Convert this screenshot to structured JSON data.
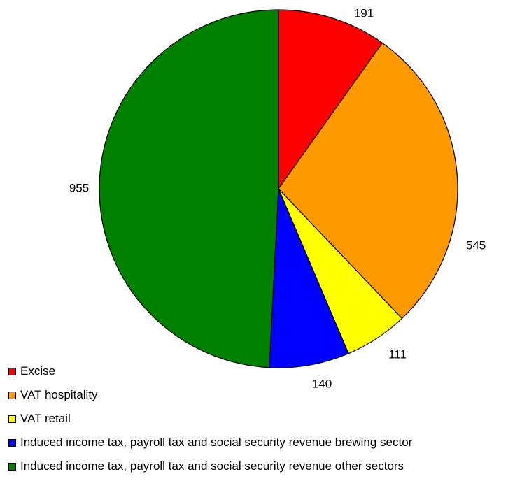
{
  "chart_data": {
    "type": "pie",
    "categories": [
      "Excise",
      "VAT hospitality",
      "VAT retail",
      "Induced income tax, payroll tax and social security revenue brewing sector",
      "Induced income tax, payroll tax and social security revenue other sectors"
    ],
    "values": [
      191,
      545,
      111,
      140,
      955
    ],
    "data_labels": [
      "191",
      "545",
      "111",
      "140",
      "955"
    ],
    "colors": [
      "#ff0000",
      "#ff9900",
      "#ffff00",
      "#0000ff",
      "#008000"
    ],
    "start_angle_deg": 0,
    "direction": "clockwise",
    "legend_position": "bottom-left"
  }
}
